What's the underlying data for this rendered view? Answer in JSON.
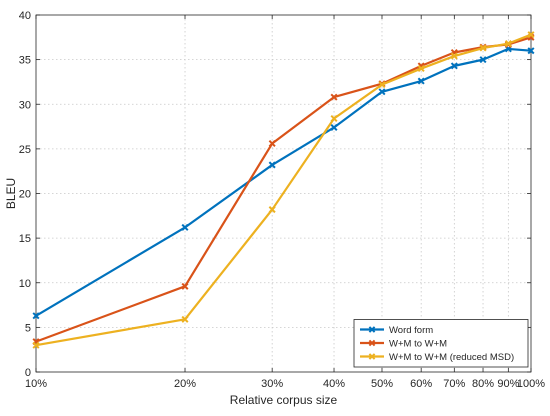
{
  "chart_data": {
    "type": "line",
    "title": "",
    "xlabel": "Relative corpus size",
    "ylabel": "BLEU",
    "x_scale": "log",
    "x_ticks": [
      10,
      20,
      30,
      40,
      50,
      60,
      70,
      80,
      90,
      100
    ],
    "x_tick_labels": [
      "10%",
      "20%",
      "30%",
      "40%",
      "50%",
      "60%",
      "70%",
      "80%",
      "90%",
      "100%"
    ],
    "xlim": [
      10,
      100
    ],
    "ylim": [
      0,
      40
    ],
    "y_ticks": [
      0,
      5,
      10,
      15,
      20,
      25,
      30,
      35,
      40
    ],
    "grid": true,
    "legend_position": "bottom-right",
    "series": [
      {
        "name": "Word form",
        "color": "#0072BD",
        "marker": "x",
        "x": [
          10,
          20,
          30,
          40,
          50,
          60,
          70,
          80,
          90,
          100
        ],
        "values": [
          6.3,
          16.2,
          23.2,
          27.4,
          31.4,
          32.6,
          34.3,
          35.0,
          36.2,
          36.0
        ]
      },
      {
        "name": "W+M to W+M",
        "color": "#D95319",
        "marker": "x",
        "x": [
          10,
          20,
          30,
          40,
          50,
          60,
          70,
          80,
          90,
          100
        ],
        "values": [
          3.4,
          9.6,
          25.6,
          30.8,
          32.3,
          34.3,
          35.8,
          36.4,
          36.7,
          37.5
        ]
      },
      {
        "name": "W+M to W+M (reduced MSD)",
        "color": "#EDB120",
        "marker": "x",
        "x": [
          10,
          20,
          30,
          40,
          50,
          60,
          70,
          80,
          90,
          100
        ],
        "values": [
          3.0,
          5.9,
          18.2,
          28.4,
          32.2,
          34.0,
          35.4,
          36.3,
          36.8,
          37.8
        ]
      }
    ]
  }
}
